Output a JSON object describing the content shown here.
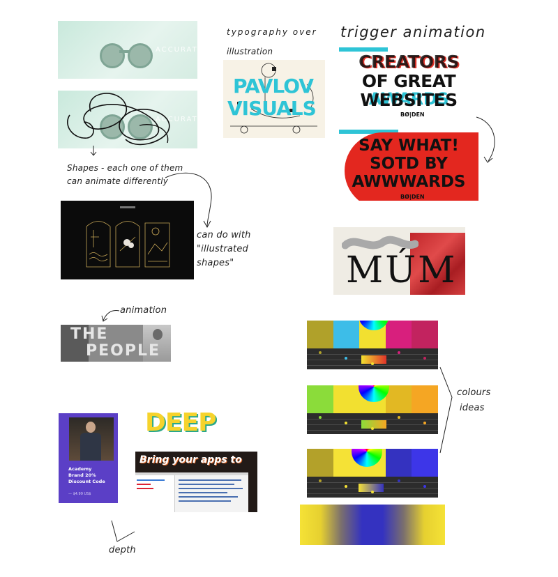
{
  "notes": {
    "typography_over": "typography over",
    "illustration": "illustration",
    "trigger_animation": "trigger animation",
    "shapes_line1": "Shapes - each one of them",
    "shapes_line2": "can animate differently",
    "can_do_with": "can do with",
    "illustrated": "\"illustrated",
    "shapes": "shapes\"",
    "animation": "animation",
    "colours": "colours",
    "ideas": "ideas",
    "depth": "depth"
  },
  "sunglasses": {
    "ghost_text": "ACCURATE"
  },
  "pavlov": {
    "line1": "PAVLOV",
    "line2": "VISUALS"
  },
  "creators": {
    "line1": "CREATORS",
    "line2": "OF GREAT",
    "line3": "WEBSITES",
    "ghost": "AWARDS",
    "brand": "BØ|DEN"
  },
  "saywhat": {
    "line1": "SAY WHAT!",
    "line2": "SOTD BY",
    "line3": "AWWWARDS",
    "brand": "BØ|DEN"
  },
  "mum": {
    "word": "MÚM"
  },
  "people": {
    "line1": "THE",
    "line2": "PEOPLE"
  },
  "academy": {
    "line1": "Academy",
    "line2": "Brand 20%",
    "line3": "Discount Code",
    "footer": "— $4.99 US$"
  },
  "deep": {
    "word": "DEEP",
    "banner": "Bring your apps to"
  },
  "colors": {
    "panel1": [
      "#b0a12a",
      "#3dbde8",
      "#f2e030",
      "#d81f7d",
      "#c2235f"
    ],
    "panel2": [
      "#8bdc3a",
      "#f2e030",
      "#f2e030",
      "#e2b823",
      "#f5a623"
    ],
    "panel3": [
      "#b3a12a",
      "#f5e236",
      "#f5e236",
      "#3432c0",
      "#3d36e8"
    ],
    "gradient": [
      "#f5e236",
      "#e6d030",
      "#7a6f6e",
      "#3432c0",
      "#3432c0",
      "#7a6f6e",
      "#e6d030",
      "#f5e236"
    ]
  }
}
